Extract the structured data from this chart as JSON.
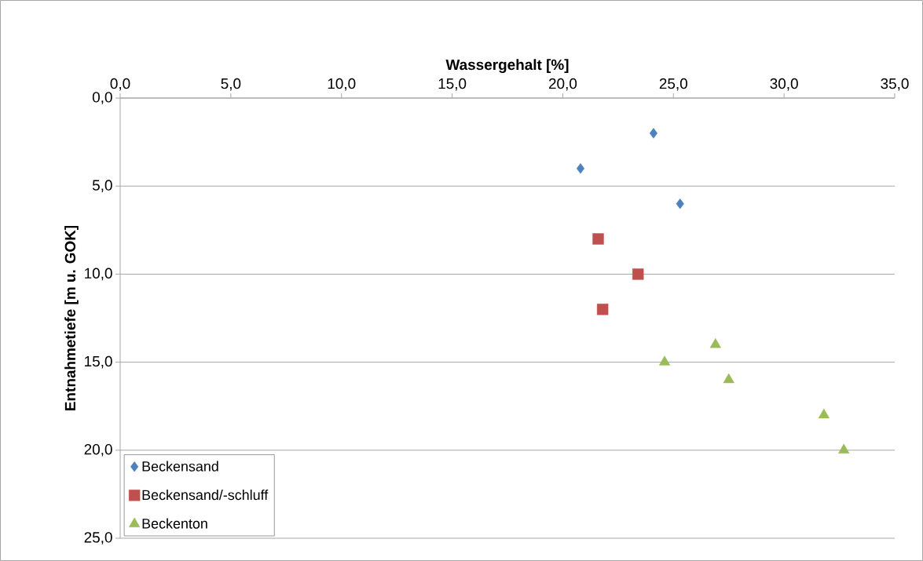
{
  "chart_data": {
    "type": "scatter",
    "xlabel": "Wassergehalt [%]",
    "ylabel": "Entnahmetiefe [m u. GOK]",
    "xlim": [
      0,
      35
    ],
    "ylim": [
      25,
      0
    ],
    "xticks": [
      {
        "value": 0,
        "label": "0,0"
      },
      {
        "value": 5,
        "label": "5,0"
      },
      {
        "value": 10,
        "label": "10,0"
      },
      {
        "value": 15,
        "label": "15,0"
      },
      {
        "value": 20,
        "label": "20,0"
      },
      {
        "value": 25,
        "label": "25,0"
      },
      {
        "value": 30,
        "label": "30,0"
      },
      {
        "value": 35,
        "label": "35,0"
      }
    ],
    "yticks": [
      {
        "value": 0,
        "label": "0,0"
      },
      {
        "value": 5,
        "label": "5,0"
      },
      {
        "value": 10,
        "label": "10,0"
      },
      {
        "value": 15,
        "label": "15,0"
      },
      {
        "value": 20,
        "label": "20,0"
      },
      {
        "value": 25,
        "label": "25,0"
      }
    ],
    "grid": "y",
    "legend": "bottom left",
    "series": [
      {
        "name": "Beckensand",
        "color": "#4f81bd",
        "marker": "diamond",
        "x": [
          24.1,
          20.8,
          25.3
        ],
        "values": [
          2,
          4,
          6
        ]
      },
      {
        "name": "Beckensand/-schluff",
        "color": "#c0504d",
        "marker": "square",
        "x": [
          21.6,
          23.4,
          21.8
        ],
        "values": [
          8,
          10,
          12
        ]
      },
      {
        "name": "Beckenton",
        "color": "#9bbb59",
        "marker": "triangle",
        "x": [
          26.9,
          24.6,
          27.5,
          31.8,
          32.7
        ],
        "values": [
          14,
          15,
          16,
          18,
          20
        ]
      }
    ]
  }
}
